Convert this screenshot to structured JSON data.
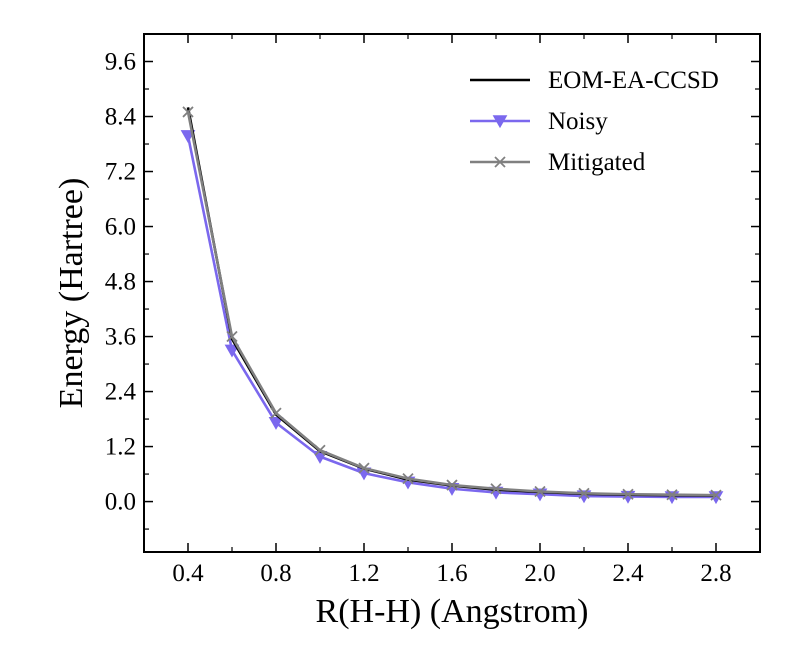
{
  "chart_data": {
    "type": "line",
    "title": "",
    "xlabel": "R(H-H) (Angstrom)",
    "ylabel": "Energy (Hartree)",
    "xlim": [
      0.2,
      3.0
    ],
    "ylim": [
      -1.1,
      10.2
    ],
    "x_ticks": [
      0.4,
      0.8,
      1.2,
      1.6,
      2.0,
      2.4,
      2.8
    ],
    "x_tick_labels": [
      "0.4",
      "0.8",
      "1.2",
      "1.6",
      "2.0",
      "2.4",
      "2.8"
    ],
    "y_ticks": [
      0.0,
      1.2,
      2.4,
      3.6,
      4.8,
      6.0,
      7.2,
      8.4,
      9.6
    ],
    "y_tick_labels": [
      "0.0",
      "1.2",
      "2.4",
      "3.6",
      "4.8",
      "6.0",
      "7.2",
      "8.4",
      "9.6"
    ],
    "x": [
      0.4,
      0.6,
      0.8,
      1.0,
      1.2,
      1.4,
      1.6,
      1.8,
      2.0,
      2.2,
      2.4,
      2.6,
      2.8
    ],
    "legend_position": "top-right",
    "series": [
      {
        "name": "EOM-EA-CCSD",
        "color": "#000000",
        "marker": "none",
        "values": [
          8.6,
          3.55,
          1.9,
          1.1,
          0.72,
          0.48,
          0.35,
          0.26,
          0.21,
          0.17,
          0.15,
          0.14,
          0.13
        ]
      },
      {
        "name": "Noisy",
        "color": "#7b68ee",
        "marker": "triangle-down",
        "values": [
          7.98,
          3.3,
          1.72,
          0.98,
          0.62,
          0.42,
          0.28,
          0.2,
          0.16,
          0.12,
          0.11,
          0.1,
          0.1
        ]
      },
      {
        "name": "Mitigated",
        "color": "#808080",
        "marker": "x",
        "values": [
          8.5,
          3.6,
          1.93,
          1.12,
          0.73,
          0.5,
          0.36,
          0.28,
          0.22,
          0.18,
          0.16,
          0.15,
          0.14
        ]
      }
    ]
  }
}
